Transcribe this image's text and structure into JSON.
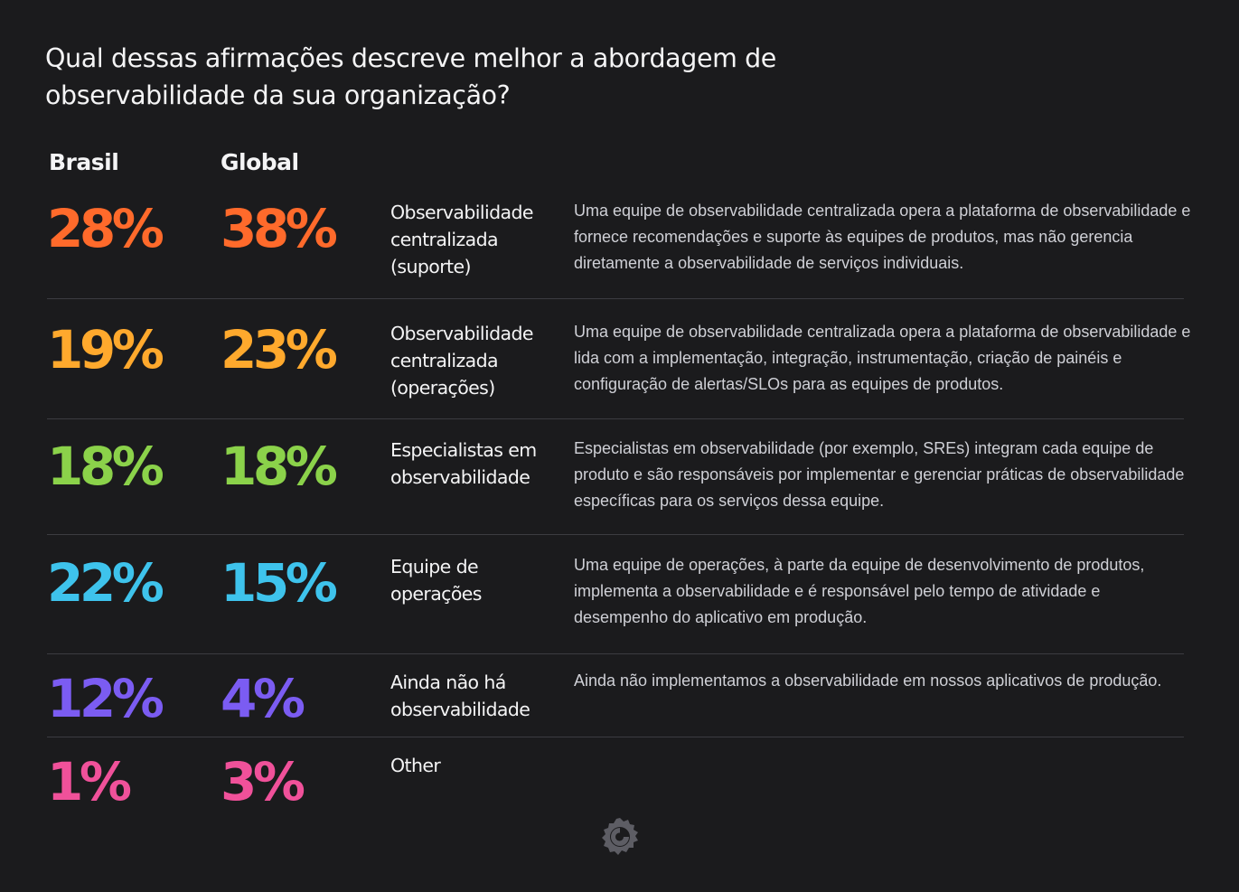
{
  "title": "Qual dessas afirmações descreve melhor a abordagem de observabilidade da sua organização?",
  "colors": {
    "background": "#1b1b1d",
    "row_colors": [
      "#ff6a2b",
      "#ffa92d",
      "#8bd24a",
      "#3ec3ec",
      "#7b5cf2",
      "#f0519a"
    ],
    "divider": "#3c3c41",
    "logo": "#5d5d64"
  },
  "logo_icon": "grafana-logo-icon",
  "chart_data": {
    "type": "table",
    "title": "Qual dessas afirmações descreve melhor a abordagem de observabilidade da sua organização?",
    "columns": [
      "Brasil",
      "Global"
    ],
    "rows": [
      {
        "brasil_label": "28%",
        "global_label": "38%",
        "brasil": 28,
        "global": 38,
        "category": "Observabilidade centralizada (suporte)",
        "description": "Uma equipe de observabilidade centralizada opera a plataforma de observabilidade e fornece recomendações e suporte às equipes de produtos, mas não gerencia diretamente a observabilidade de serviços individuais."
      },
      {
        "brasil_label": "19%",
        "global_label": "23%",
        "brasil": 19,
        "global": 23,
        "category": "Observabilidade centralizada (operações)",
        "description": "Uma equipe de observabilidade centralizada opera a plataforma de observabilidade e lida com a implementação, integração, instrumentação, criação de painéis e configuração de alertas/SLOs para as equipes de produtos."
      },
      {
        "brasil_label": "18%",
        "global_label": "18%",
        "brasil": 18,
        "global": 18,
        "category": "Especialistas em observabilidade",
        "description": "Especialistas em observabilidade (por exemplo, SREs) integram cada equipe de produto e são responsáveis por implementar e gerenciar práticas de observabilidade específicas para os serviços dessa equipe."
      },
      {
        "brasil_label": "22%",
        "global_label": "15%",
        "brasil": 22,
        "global": 15,
        "category": "Equipe de operações",
        "description": "Uma equipe de operações, à parte da equipe de desenvolvimento de produtos, implementa a observabilidade e é responsável pelo tempo de atividade e desempenho do aplicativo em produção."
      },
      {
        "brasil_label": "12%",
        "global_label": "4%",
        "brasil": 12,
        "global": 4,
        "category": "Ainda não há observabilidade",
        "description": "Ainda não implementamos a observabilidade em nossos aplicativos de produção."
      },
      {
        "brasil_label": "1%",
        "global_label": "3%",
        "brasil": 1,
        "global": 3,
        "category": "Other",
        "description": ""
      }
    ]
  }
}
